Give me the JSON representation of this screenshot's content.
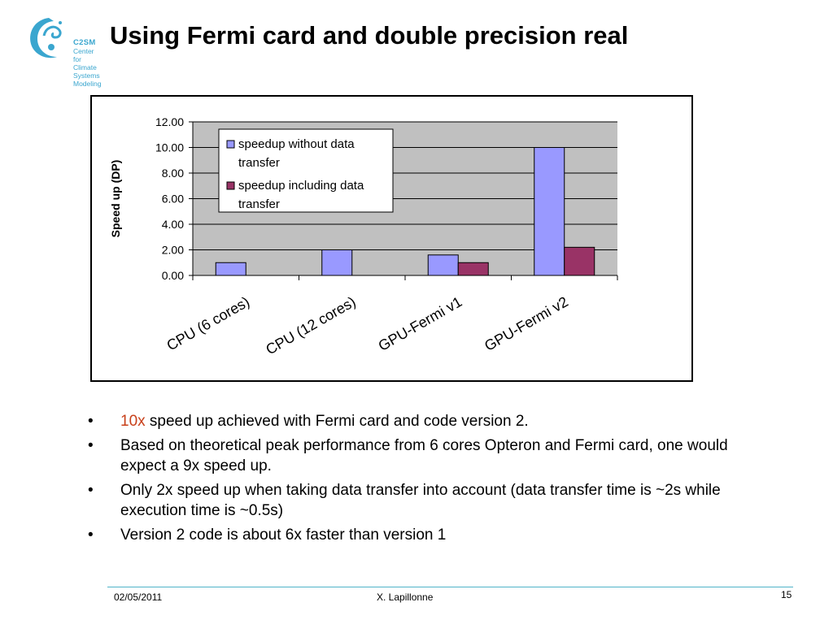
{
  "slide": {
    "title": "Using Fermi card and double precision real",
    "logo": {
      "name": "C2SM",
      "line1": "Center for Climate",
      "line2": "Systems Modeling"
    },
    "bullets": [
      {
        "highlight": "10x",
        "text": " speed up achieved with Fermi card and code version 2."
      },
      {
        "highlight": "",
        "text": "Based on theoretical peak performance from 6 cores Opteron and Fermi card, one would expect a 9x speed up."
      },
      {
        "highlight": "",
        "text": "Only 2x speed up when taking data transfer into account (data transfer time is ~2s while execution time is ~0.5s)"
      },
      {
        "highlight": "",
        "text": "Version 2 code is about  6x faster than version 1"
      }
    ],
    "bullet_symbol": "•",
    "footer": {
      "date": "02/05/2011",
      "author": "X. Lapillonne",
      "page": "15"
    },
    "colors": {
      "highlight": "#c8401a",
      "footer_line": "#4fb3c8",
      "logo": "#3aa6cf"
    }
  },
  "chart_data": {
    "type": "bar",
    "categories": [
      "CPU (6 cores)",
      "CPU (12 cores)",
      "GPU-Fermi v1",
      "GPU-Fermi v2"
    ],
    "series": [
      {
        "name": "speedup without data transfer",
        "values": [
          1.0,
          2.0,
          1.6,
          10.0
        ],
        "color": "#9999ff"
      },
      {
        "name": "speedup including data transfer",
        "values": [
          null,
          null,
          1.0,
          2.2
        ],
        "color": "#993366"
      }
    ],
    "ylabel": "Speed up (DP)",
    "xlabel": "",
    "ylim": [
      0,
      12
    ],
    "yticks": [
      "0.00",
      "2.00",
      "4.00",
      "6.00",
      "8.00",
      "10.00",
      "12.00"
    ],
    "grid": true,
    "legend_position": "top-left inside plot",
    "legend_lines": [
      [
        "speedup without data",
        "transfer"
      ],
      [
        "speedup including data",
        "transfer"
      ]
    ],
    "plot_background": "#c0c0c0"
  }
}
